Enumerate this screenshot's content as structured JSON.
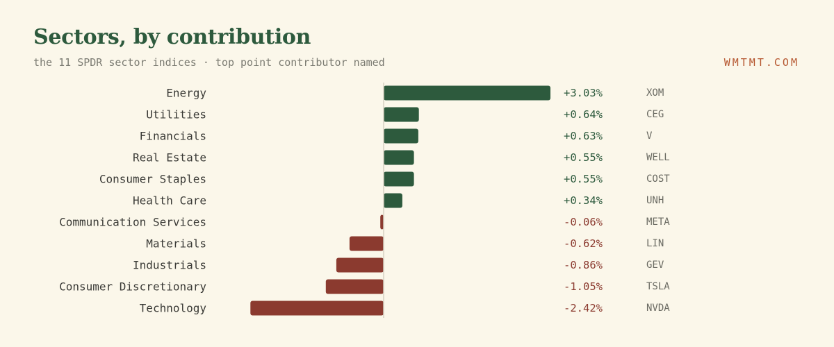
{
  "header": {
    "title": "Sectors, by contribution",
    "subtitle": "the 11 SPDR sector indices · top point contributor named",
    "brand": "WMTMT.COM"
  },
  "colors": {
    "positive": "#2d5a3d",
    "negative": "#8b3a2f",
    "axis": "#d6d1c2"
  },
  "chart_data": {
    "type": "bar",
    "orientation": "horizontal",
    "categories": [
      "Energy",
      "Utilities",
      "Financials",
      "Real Estate",
      "Consumer Staples",
      "Health Care",
      "Communication Services",
      "Materials",
      "Industrials",
      "Consumer Discretionary",
      "Technology"
    ],
    "values": [
      3.03,
      0.64,
      0.63,
      0.55,
      0.55,
      0.34,
      -0.06,
      -0.62,
      -0.86,
      -1.05,
      -2.42
    ],
    "value_labels": [
      "+3.03%",
      "+0.64%",
      "+0.63%",
      "+0.55%",
      "+0.55%",
      "+0.34%",
      "-0.06%",
      "-0.62%",
      "-0.86%",
      "-1.05%",
      "-2.42%"
    ],
    "top_contributors": [
      "XOM",
      "CEG",
      "V",
      "WELL",
      "COST",
      "UNH",
      "META",
      "LIN",
      "GEV",
      "TSLA",
      "NVDA"
    ],
    "title": "Sectors, by contribution",
    "xlabel": "",
    "ylabel": "",
    "grid": false,
    "legend": "none"
  }
}
